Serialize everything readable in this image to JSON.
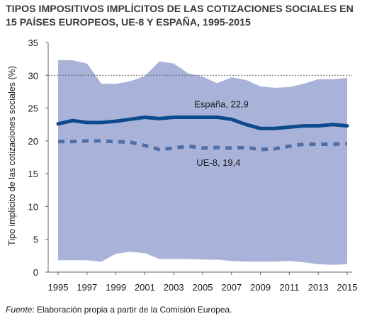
{
  "title": {
    "line1": "TIPOS IMPOSITIVOS IMPLÍCITOS DE LAS COTIZACIONES SOCIALES EN",
    "line2": "15 PAÍSES EUROPEOS, UE-8 Y ESPAÑA, 1995-2015"
  },
  "source": {
    "label": "Fuente",
    "text": ": Elaboración propia a partir de la Comisión Europea."
  },
  "colors": {
    "band": "#a9b3da",
    "spain": "#0c4a8c",
    "ue8": "#4f6ea6",
    "plot_bg": "#ffffff",
    "grid": "#666666"
  },
  "chart_data": {
    "type": "line",
    "title": "TIPOS IMPOSITIVOS IMPLÍCITOS DE LAS COTIZACIONES SOCIALES EN 15 PAÍSES EUROPEOS, UE-8 Y ESPAÑA, 1995-2015",
    "ylabel": "Tipo implícito de las cotizaciones sociales (%)",
    "xlabel": "",
    "ylim": [
      0,
      35
    ],
    "yticks": [
      "0",
      "5",
      "10",
      "15",
      "20",
      "25",
      "30",
      "35"
    ],
    "xticks": [
      "1995",
      "1997",
      "1999",
      "2001",
      "2003",
      "2005",
      "2007",
      "2009",
      "2011",
      "2013",
      "2015"
    ],
    "x": [
      1995,
      1996,
      1997,
      1998,
      1999,
      2000,
      2001,
      2002,
      2003,
      2004,
      2005,
      2006,
      2007,
      2008,
      2009,
      2010,
      2011,
      2012,
      2013,
      2014,
      2015
    ],
    "grid": "horizontal dashed at 30",
    "band": {
      "upper": [
        32.3,
        32.3,
        31.8,
        28.7,
        28.7,
        29.1,
        29.9,
        32.1,
        31.8,
        30.3,
        29.8,
        28.8,
        29.7,
        29.3,
        28.3,
        28.1,
        28.2,
        28.7,
        29.4,
        29.4,
        29.6
      ],
      "lower": [
        1.8,
        1.8,
        1.8,
        1.6,
        2.8,
        3.1,
        2.9,
        2.0,
        2.0,
        2.0,
        1.9,
        1.9,
        1.7,
        1.6,
        1.6,
        1.6,
        1.7,
        1.5,
        1.2,
        1.1,
        1.2
      ]
    },
    "series": [
      {
        "name": "España",
        "label": "España, 22,9",
        "style": "solid",
        "values": [
          22.6,
          23.1,
          22.8,
          22.8,
          23.0,
          23.3,
          23.6,
          23.4,
          23.6,
          23.6,
          23.6,
          23.6,
          23.3,
          22.5,
          21.9,
          21.9,
          22.1,
          22.3,
          22.3,
          22.5,
          22.3
        ]
      },
      {
        "name": "UE-8",
        "label": "UE-8, 19,4",
        "style": "dashed",
        "values": [
          19.9,
          19.9,
          20.0,
          20.0,
          19.9,
          19.8,
          19.3,
          18.7,
          18.9,
          19.2,
          18.9,
          19.0,
          18.9,
          19.0,
          18.7,
          18.8,
          19.2,
          19.5,
          19.5,
          19.5,
          19.6
        ]
      }
    ]
  }
}
